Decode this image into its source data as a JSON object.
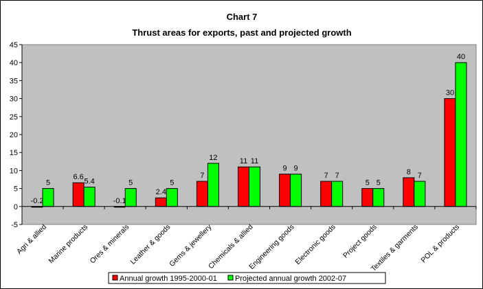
{
  "chart_data": {
    "type": "bar",
    "title": "Chart 7",
    "subtitle": "Thrust areas for exports, past and projected growth",
    "categories": [
      "Agri & allied",
      "Marine products",
      "Ores & minerals",
      "Leather & goods",
      "Gems & jewellery",
      "Chemicals & allied",
      "Engineering goods",
      "Electronic goods",
      "Project goods",
      "Textiles & garments",
      "POL & products"
    ],
    "series": [
      {
        "name": "Annual growth 1995-2000-01",
        "color": "#ff0000",
        "values": [
          -0.2,
          6.6,
          -0.1,
          2.4,
          7,
          11,
          9,
          7,
          5,
          8,
          30
        ],
        "labels": [
          "-0.2",
          "6.6",
          "-0.1",
          "2.4",
          "7",
          "11",
          "9",
          "7",
          "5",
          "8",
          "30"
        ]
      },
      {
        "name": "Projected annual growth 2002-07",
        "color": "#00ff00",
        "values": [
          5,
          5.4,
          5,
          5,
          12,
          11,
          9,
          7,
          5,
          7,
          40
        ],
        "labels": [
          "5",
          "5.4",
          "5",
          "5",
          "12",
          "11",
          "9",
          "7",
          "5",
          "7",
          "40"
        ]
      }
    ],
    "ylim": [
      -5,
      45
    ],
    "yticks": [
      "-5",
      "0",
      "5",
      "10",
      "15",
      "20",
      "25",
      "30",
      "35",
      "40",
      "45"
    ],
    "xlabel": "",
    "ylabel": "",
    "grid": false,
    "legend": "bottom"
  }
}
